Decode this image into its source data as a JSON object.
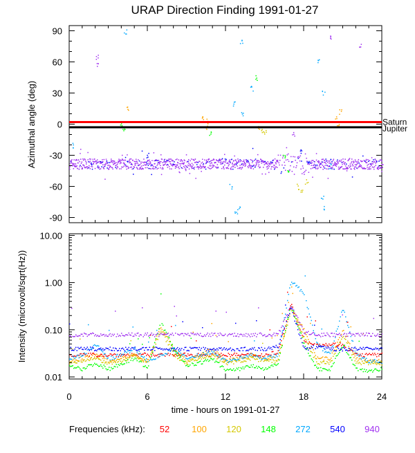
{
  "chart_data": [
    {
      "type": "scatter",
      "title": "URAP Direction Finding  1991-01-27",
      "ylabel": "Azimuthal angle (deg)",
      "xlim": [
        0,
        24
      ],
      "ylim": [
        -95,
        95
      ],
      "yticks": [
        "90",
        "60",
        "30",
        "0",
        "-30",
        "-60",
        "-90"
      ],
      "ytick_values": [
        90,
        60,
        30,
        0,
        -30,
        -60,
        -90
      ],
      "reference_lines": [
        {
          "name": "Saturn",
          "value": 2,
          "color": "#ff0000"
        },
        {
          "name": "Jupiter",
          "value": -3,
          "color": "#000000"
        }
      ],
      "band": {
        "freq": "940",
        "center": -38,
        "spread": 5,
        "disturbed_hours": [
          16,
          18.5
        ]
      },
      "points": [
        [
          2.1,
          65,
          "940"
        ],
        [
          2.1,
          58,
          "940"
        ],
        [
          4.3,
          90,
          "272"
        ],
        [
          4.0,
          0,
          "148"
        ],
        [
          4.2,
          -5,
          "148"
        ],
        [
          4.5,
          15,
          "100"
        ],
        [
          10.2,
          5,
          "100"
        ],
        [
          10.5,
          -3,
          "100"
        ],
        [
          10.6,
          3,
          "100"
        ],
        [
          10.8,
          -8,
          "148"
        ],
        [
          12.4,
          -60,
          "272"
        ],
        [
          12.8,
          -85,
          "272"
        ],
        [
          13.0,
          -80,
          "272"
        ],
        [
          12.6,
          20,
          "272"
        ],
        [
          13.2,
          80,
          "272"
        ],
        [
          13.3,
          10,
          "272"
        ],
        [
          14.0,
          35,
          "272"
        ],
        [
          14.3,
          45,
          "148"
        ],
        [
          14.8,
          -5,
          "120"
        ],
        [
          15.0,
          -8,
          "120"
        ],
        [
          14.5,
          -2,
          "100"
        ],
        [
          16.5,
          -30,
          "148"
        ],
        [
          16.8,
          -45,
          "148"
        ],
        [
          17.5,
          -60,
          "120"
        ],
        [
          17.8,
          -65,
          "120"
        ],
        [
          18.2,
          -55,
          "120"
        ],
        [
          17.2,
          -10,
          "940"
        ],
        [
          17.8,
          -25,
          "540"
        ],
        [
          18.3,
          -35,
          "540"
        ],
        [
          19.6,
          -80,
          "272"
        ],
        [
          19.4,
          -70,
          "272"
        ],
        [
          19.1,
          60,
          "272"
        ],
        [
          19.5,
          30,
          "272"
        ],
        [
          20.0,
          -40,
          "272"
        ],
        [
          20.5,
          5,
          "100"
        ],
        [
          20.6,
          0,
          "100"
        ],
        [
          20.8,
          12,
          "100"
        ],
        [
          20.0,
          85,
          "940"
        ],
        [
          22.3,
          75,
          "940"
        ],
        [
          24.0,
          -40,
          "940"
        ],
        [
          0.3,
          -20,
          "272"
        ],
        [
          6.0,
          -30,
          "540"
        ]
      ]
    },
    {
      "type": "scatter",
      "ylabel": "Intensity (microvolt/sqrt(Hz))",
      "xlabel": "time - hours on 1991-01-27",
      "xlim": [
        0,
        24
      ],
      "ylim": [
        0.01,
        12
      ],
      "yscale": "log",
      "xticks": [
        "0",
        "6",
        "12",
        "18",
        "24"
      ],
      "xtick_values": [
        0,
        6,
        12,
        18,
        24
      ],
      "yticks": [
        "10.00",
        "1.00",
        "0.10",
        "0.01"
      ],
      "ytick_values": [
        10,
        1,
        0.1,
        0.01
      ],
      "x_hours": [
        0,
        1,
        2,
        3,
        4,
        5,
        6,
        7,
        8,
        9,
        10,
        11,
        12,
        13,
        14,
        15,
        16,
        17,
        18,
        19,
        20,
        21,
        22,
        23,
        24
      ],
      "series": [
        {
          "name": "52",
          "color": "#ff0000",
          "values": [
            0.03,
            0.03,
            0.03,
            0.03,
            0.03,
            0.03,
            0.03,
            0.03,
            0.03,
            0.03,
            0.03,
            0.03,
            0.03,
            0.03,
            0.03,
            0.03,
            0.035,
            0.35,
            0.06,
            0.05,
            0.05,
            0.05,
            0.03,
            0.03,
            0.03
          ]
        },
        {
          "name": "100",
          "color": "#ffa500",
          "values": [
            0.022,
            0.025,
            0.03,
            0.022,
            0.025,
            0.03,
            0.022,
            0.12,
            0.04,
            0.022,
            0.03,
            0.04,
            0.022,
            0.025,
            0.03,
            0.025,
            0.025,
            0.3,
            0.1,
            0.025,
            0.025,
            0.1,
            0.025,
            0.022,
            0.022
          ]
        },
        {
          "name": "120",
          "color": "#d4c800",
          "values": [
            0.02,
            0.022,
            0.025,
            0.02,
            0.022,
            0.03,
            0.02,
            0.1,
            0.03,
            0.02,
            0.025,
            0.03,
            0.02,
            0.022,
            0.025,
            0.022,
            0.022,
            0.28,
            0.07,
            0.02,
            0.02,
            0.08,
            0.02,
            0.02,
            0.02
          ]
        },
        {
          "name": "148",
          "color": "#00ff00",
          "values": [
            0.018,
            0.015,
            0.02,
            0.015,
            0.02,
            0.025,
            0.016,
            0.15,
            0.04,
            0.018,
            0.02,
            0.025,
            0.014,
            0.015,
            0.018,
            0.015,
            0.02,
            0.35,
            0.05,
            0.015,
            0.015,
            0.05,
            0.015,
            0.014,
            0.015
          ]
        },
        {
          "name": "272",
          "color": "#00a8ff",
          "values": [
            0.025,
            0.03,
            0.05,
            0.025,
            0.03,
            0.04,
            0.022,
            0.03,
            0.04,
            0.025,
            0.03,
            0.035,
            0.022,
            0.025,
            0.03,
            0.025,
            0.03,
            1.1,
            0.6,
            0.05,
            0.03,
            0.3,
            0.03,
            0.022,
            0.022
          ]
        },
        {
          "name": "540",
          "color": "#0000ff",
          "values": [
            0.04,
            0.04,
            0.04,
            0.04,
            0.04,
            0.04,
            0.04,
            0.04,
            0.04,
            0.04,
            0.04,
            0.04,
            0.04,
            0.04,
            0.04,
            0.04,
            0.045,
            0.3,
            0.04,
            0.045,
            0.04,
            0.04,
            0.04,
            0.04,
            0.04
          ]
        },
        {
          "name": "940",
          "color": "#a030f0",
          "values": [
            0.08,
            0.08,
            0.08,
            0.08,
            0.08,
            0.08,
            0.08,
            0.08,
            0.08,
            0.08,
            0.08,
            0.08,
            0.08,
            0.08,
            0.08,
            0.08,
            0.08,
            0.35,
            0.09,
            0.08,
            0.08,
            0.08,
            0.08,
            0.08,
            0.08
          ]
        }
      ],
      "legend": {
        "label": "Frequencies (kHz):",
        "placement": "bottom",
        "entries": [
          {
            "name": "52",
            "color": "#ff0000"
          },
          {
            "name": "100",
            "color": "#ffa500"
          },
          {
            "name": "120",
            "color": "#d4c800"
          },
          {
            "name": "148",
            "color": "#00ff00"
          },
          {
            "name": "272",
            "color": "#00a8ff"
          },
          {
            "name": "540",
            "color": "#0000ff"
          },
          {
            "name": "940",
            "color": "#a030f0"
          }
        ]
      }
    }
  ]
}
